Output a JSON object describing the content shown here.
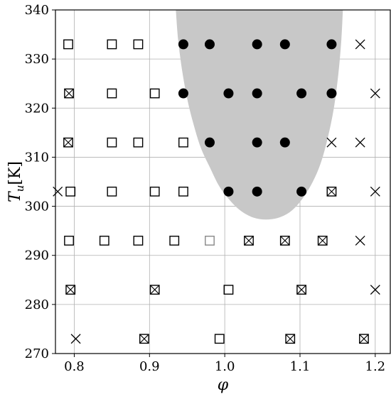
{
  "chart_data": {
    "type": "scatter",
    "xlabel": "φ",
    "ylabel_main": "T",
    "ylabel_sub": "u",
    "ylabel_unit": "[K]",
    "xlim": [
      0.775,
      1.22
    ],
    "ylim": [
      270,
      340
    ],
    "xticks": [
      0.8,
      0.9,
      1.0,
      1.1,
      1.2
    ],
    "xtick_labels": [
      "0.8",
      "0.9",
      "1.0",
      "1.1",
      "1.2"
    ],
    "yticks": [
      270,
      280,
      290,
      300,
      310,
      320,
      330,
      340
    ],
    "ytick_labels": [
      "270",
      "280",
      "290",
      "300",
      "310",
      "320",
      "330",
      "340"
    ],
    "grid": true,
    "shaded_region_color": "#c8c8c8",
    "shaded_region": [
      [
        0.935,
        340
      ],
      [
        0.938,
        334
      ],
      [
        0.943,
        328
      ],
      [
        0.95,
        322
      ],
      [
        0.958,
        317
      ],
      [
        0.968,
        312
      ],
      [
        0.98,
        308
      ],
      [
        0.993,
        304
      ],
      [
        1.008,
        301
      ],
      [
        1.022,
        299
      ],
      [
        1.038,
        297.7
      ],
      [
        1.055,
        297.3
      ],
      [
        1.072,
        297.7
      ],
      [
        1.088,
        299
      ],
      [
        1.103,
        301.5
      ],
      [
        1.117,
        305
      ],
      [
        1.128,
        309
      ],
      [
        1.137,
        314
      ],
      [
        1.145,
        320
      ],
      [
        1.151,
        327
      ],
      [
        1.155,
        334
      ],
      [
        1.157,
        340
      ]
    ],
    "series": [
      {
        "marker": "circle-filled",
        "points": [
          [
            0.945,
            333
          ],
          [
            0.98,
            333
          ],
          [
            1.043,
            333
          ],
          [
            1.08,
            333
          ],
          [
            1.142,
            333
          ],
          [
            0.945,
            323
          ],
          [
            1.005,
            323
          ],
          [
            1.043,
            323
          ],
          [
            1.102,
            323
          ],
          [
            1.142,
            323
          ],
          [
            0.98,
            313
          ],
          [
            1.043,
            313
          ],
          [
            1.08,
            313
          ],
          [
            1.005,
            303
          ],
          [
            1.043,
            303
          ],
          [
            1.102,
            303
          ]
        ]
      },
      {
        "marker": "square",
        "points": [
          [
            0.792,
            333
          ],
          [
            0.85,
            333
          ],
          [
            0.885,
            333
          ],
          [
            0.85,
            323
          ],
          [
            0.907,
            323
          ],
          [
            0.85,
            313
          ],
          [
            0.885,
            313
          ],
          [
            0.945,
            313
          ],
          [
            0.795,
            303
          ],
          [
            0.85,
            303
          ],
          [
            0.907,
            303
          ],
          [
            0.945,
            303
          ],
          [
            0.793,
            293
          ],
          [
            0.84,
            293
          ],
          [
            0.885,
            293
          ],
          [
            0.933,
            293
          ],
          [
            1.005,
            283
          ],
          [
            0.993,
            273
          ]
        ]
      },
      {
        "marker": "square-light",
        "points": [
          [
            0.98,
            293
          ]
        ]
      },
      {
        "marker": "square-x",
        "points": [
          [
            0.793,
            323
          ],
          [
            0.792,
            313
          ],
          [
            1.142,
            303
          ],
          [
            1.032,
            293
          ],
          [
            1.08,
            293
          ],
          [
            1.13,
            293
          ],
          [
            0.795,
            283
          ],
          [
            0.907,
            283
          ],
          [
            1.102,
            283
          ],
          [
            0.893,
            273
          ],
          [
            1.087,
            273
          ],
          [
            1.185,
            273
          ]
        ]
      },
      {
        "marker": "x",
        "points": [
          [
            1.18,
            333
          ],
          [
            1.2,
            323
          ],
          [
            1.142,
            313
          ],
          [
            1.18,
            313
          ],
          [
            0.778,
            303
          ],
          [
            1.2,
            303
          ],
          [
            1.18,
            293
          ],
          [
            1.2,
            283
          ],
          [
            0.802,
            273
          ]
        ]
      }
    ]
  }
}
